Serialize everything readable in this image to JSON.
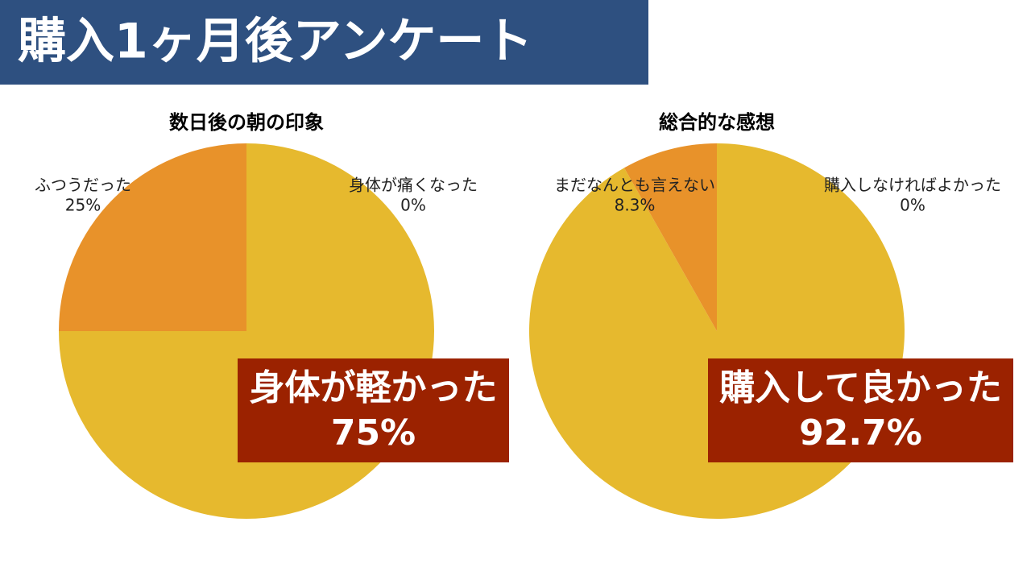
{
  "header": {
    "title": "購入1ヶ月後アンケート"
  },
  "chart_data": [
    {
      "type": "pie",
      "title": "数日後の朝の印象",
      "categories": [
        "身体が軽かった",
        "ふつうだった",
        "身体が痛くなった"
      ],
      "values": [
        75,
        25,
        0
      ],
      "value_labels": [
        "75%",
        "25%",
        "0%"
      ],
      "colors": [
        "#E6B92E",
        "#E8922A",
        "#D9534F"
      ]
    },
    {
      "type": "pie",
      "title": "総合的な感想",
      "categories": [
        "購入して良かった",
        "まだなんとも言えない",
        "購入しなければよかった"
      ],
      "values": [
        92.7,
        8.3,
        0
      ],
      "value_labels": [
        "92.7%",
        "8.3%",
        "0%"
      ],
      "colors": [
        "#E6B92E",
        "#E8922A",
        "#D9534F"
      ]
    }
  ]
}
